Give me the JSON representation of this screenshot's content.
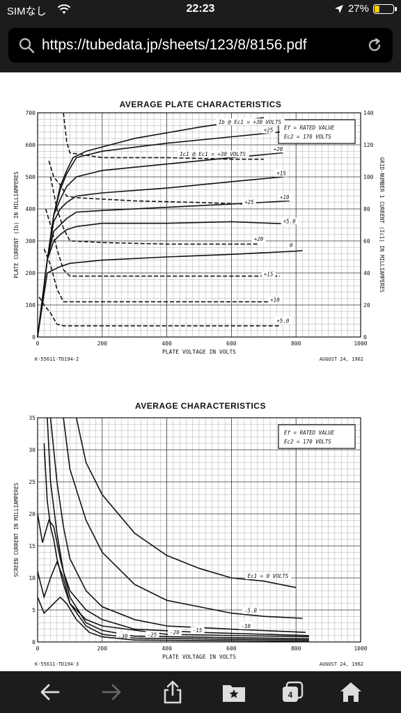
{
  "status_bar": {
    "carrier": "SIMなし",
    "time": "22:23",
    "battery": "27%",
    "battery_fraction": 0.27
  },
  "browser": {
    "url": "https://tubedata.jp/sheets/123/8/8156.pdf",
    "tab_count": "4"
  },
  "chart_data": [
    {
      "type": "line",
      "title": "AVERAGE PLATE CHARACTERISTICS",
      "xlabel": "PLATE VOLTAGE IN VOLTS",
      "ylabel": "PLATE CURRENT (Ib) IN MILLIAMPERES",
      "y2label": "GRID-NUMBER 1 CURRENT (Ic1) IN MILLIAMPERES",
      "xlim": [
        0,
        1000
      ],
      "ylim": [
        0,
        700
      ],
      "y2lim": [
        0,
        140
      ],
      "x_ticks": [
        "0",
        "200",
        "400",
        "600",
        "800",
        "1000"
      ],
      "y_ticks": [
        "0",
        "100",
        "200",
        "300",
        "400",
        "500",
        "600",
        "700"
      ],
      "y2_ticks": [
        "0",
        "20",
        "40",
        "60",
        "80",
        "100",
        "120",
        "140"
      ],
      "grid": true,
      "legend": [
        "Ef = RATED VALUE",
        "Ec2 = 170 VOLTS"
      ],
      "legend_position": "top-right",
      "footer_left": "K-55611-TD194-2",
      "footer_right": "AUGUST 24, 1962",
      "series": [
        {
          "name": "Ib @ Ec1 = +30 VOLTS",
          "style": "solid",
          "label_x": 560,
          "label_y": 665,
          "points": [
            [
              0,
              0
            ],
            [
              30,
              240
            ],
            [
              50,
              380
            ],
            [
              70,
              470
            ],
            [
              90,
              520
            ],
            [
              110,
              560
            ],
            [
              150,
              580
            ],
            [
              300,
              620
            ],
            [
              500,
              655
            ],
            [
              700,
              685
            ]
          ]
        },
        {
          "name": "+25",
          "style": "solid",
          "label_x": 700,
          "label_y": 640,
          "points": [
            [
              0,
              0
            ],
            [
              30,
              240
            ],
            [
              50,
              380
            ],
            [
              70,
              460
            ],
            [
              90,
              510
            ],
            [
              120,
              560
            ],
            [
              200,
              580
            ],
            [
              400,
              605
            ],
            [
              600,
              625
            ],
            [
              750,
              640
            ]
          ]
        },
        {
          "name": "+20",
          "style": "solid",
          "label_x": 730,
          "label_y": 580,
          "points": [
            [
              0,
              0
            ],
            [
              30,
              240
            ],
            [
              50,
              380
            ],
            [
              70,
              430
            ],
            [
              90,
              470
            ],
            [
              120,
              500
            ],
            [
              200,
              520
            ],
            [
              400,
              540
            ],
            [
              600,
              560
            ],
            [
              760,
              575
            ]
          ]
        },
        {
          "name": "+15",
          "style": "solid",
          "label_x": 740,
          "label_y": 505,
          "points": [
            [
              0,
              0
            ],
            [
              30,
              240
            ],
            [
              50,
              360
            ],
            [
              70,
              400
            ],
            [
              90,
              420
            ],
            [
              120,
              440
            ],
            [
              200,
              450
            ],
            [
              400,
              465
            ],
            [
              600,
              485
            ],
            [
              760,
              500
            ]
          ]
        },
        {
          "name": "+10",
          "style": "solid",
          "label_x": 750,
          "label_y": 430,
          "points": [
            [
              0,
              0
            ],
            [
              30,
              240
            ],
            [
              50,
              330
            ],
            [
              70,
              350
            ],
            [
              90,
              370
            ],
            [
              120,
              390
            ],
            [
              200,
              395
            ],
            [
              400,
              405
            ],
            [
              600,
              415
            ],
            [
              780,
              425
            ]
          ]
        },
        {
          "name": "+5.0",
          "style": "solid",
          "label_x": 760,
          "label_y": 355,
          "points": [
            [
              0,
              0
            ],
            [
              30,
              240
            ],
            [
              50,
              300
            ],
            [
              70,
              320
            ],
            [
              90,
              335
            ],
            [
              120,
              345
            ],
            [
              200,
              355
            ],
            [
              400,
              355
            ],
            [
              600,
              360
            ],
            [
              800,
              352
            ]
          ]
        },
        {
          "name": "0",
          "style": "solid",
          "label_x": 780,
          "label_y": 280,
          "points": [
            [
              0,
              0
            ],
            [
              30,
              200
            ],
            [
              50,
              210
            ],
            [
              70,
              220
            ],
            [
              100,
              230
            ],
            [
              200,
              240
            ],
            [
              400,
              250
            ],
            [
              600,
              258
            ],
            [
              800,
              268
            ],
            [
              820,
              270
            ]
          ]
        },
        {
          "name": "Ic1 @ Ec1 = +30 VOLTS",
          "style": "dashed",
          "axis": "y2",
          "label_x": 440,
          "label_y": 113,
          "points": [
            [
              80,
              140
            ],
            [
              90,
              122
            ],
            [
              100,
              115
            ],
            [
              200,
              112
            ],
            [
              400,
              112
            ],
            [
              600,
              111
            ],
            [
              700,
              111
            ]
          ]
        },
        {
          "name": "+25",
          "style": "dashed",
          "axis": "y2",
          "label_x": 640,
          "label_y": 83,
          "points": [
            [
              35,
              110
            ],
            [
              50,
              100
            ],
            [
              70,
              95
            ],
            [
              90,
              88
            ],
            [
              120,
              87
            ],
            [
              300,
              85
            ],
            [
              500,
              84
            ],
            [
              640,
              83
            ]
          ]
        },
        {
          "name": "+20",
          "style": "dashed",
          "axis": "y2",
          "label_x": 670,
          "label_y": 60,
          "points": [
            [
              40,
              100
            ],
            [
              60,
              80
            ],
            [
              80,
              68
            ],
            [
              100,
              60
            ],
            [
              200,
              59
            ],
            [
              400,
              58
            ],
            [
              600,
              58
            ],
            [
              680,
              58
            ]
          ]
        },
        {
          "name": "+15",
          "style": "dashed",
          "axis": "y2",
          "label_x": 700,
          "label_y": 38,
          "points": [
            [
              25,
              80
            ],
            [
              40,
              70
            ],
            [
              60,
              55
            ],
            [
              80,
              42
            ],
            [
              100,
              38
            ],
            [
              200,
              38
            ],
            [
              500,
              38
            ],
            [
              750,
              38
            ]
          ]
        },
        {
          "name": "+10",
          "style": "dashed",
          "axis": "y2",
          "label_x": 720,
          "label_y": 22,
          "points": [
            [
              20,
              55
            ],
            [
              40,
              45
            ],
            [
              60,
              30
            ],
            [
              80,
              22
            ],
            [
              100,
              22
            ],
            [
              300,
              22
            ],
            [
              600,
              22
            ],
            [
              750,
              22
            ]
          ]
        },
        {
          "name": "+5.0",
          "style": "dashed",
          "axis": "y2",
          "label_x": 740,
          "label_y": 9,
          "points": [
            [
              5,
              25
            ],
            [
              20,
              20
            ],
            [
              40,
              15
            ],
            [
              60,
              8
            ],
            [
              80,
              7
            ],
            [
              200,
              7
            ],
            [
              500,
              7
            ],
            [
              750,
              7
            ]
          ]
        }
      ]
    },
    {
      "type": "line",
      "title": "AVERAGE CHARACTERISTICS",
      "xlabel": "PLATE VOLTAGE IN VOLTS",
      "ylabel": "SCREEN CURRENT IN MILLIAMPERES",
      "xlim": [
        0,
        1000
      ],
      "ylim": [
        0,
        35
      ],
      "x_ticks": [
        "0",
        "200",
        "400",
        "600",
        "800",
        "1000"
      ],
      "y_ticks": [
        "0",
        "5",
        "10",
        "15",
        "20",
        "25",
        "30",
        "35"
      ],
      "grid": true,
      "legend": [
        "Ef = RATED VALUE",
        "Ec2 = 170 VOLTS"
      ],
      "legend_position": "top-right",
      "footer_left": "K-55611-TD194-3",
      "footer_right": "AUGUST 24, 1962",
      "series": [
        {
          "name": "Ec1 = 0 VOLTS",
          "style": "solid",
          "label_x": 650,
          "label_y": 10,
          "points": [
            [
              120,
              35
            ],
            [
              150,
              28
            ],
            [
              200,
              23
            ],
            [
              300,
              17
            ],
            [
              400,
              13.5
            ],
            [
              500,
              11.5
            ],
            [
              600,
              10
            ],
            [
              700,
              9.5
            ],
            [
              800,
              8.5
            ]
          ]
        },
        {
          "name": "-5.0",
          "style": "solid",
          "label_x": 640,
          "label_y": 4.6,
          "points": [
            [
              80,
              35
            ],
            [
              100,
              27
            ],
            [
              150,
              19
            ],
            [
              200,
              14
            ],
            [
              300,
              9
            ],
            [
              400,
              6.5
            ],
            [
              500,
              5.5
            ],
            [
              600,
              4.5
            ],
            [
              700,
              4
            ],
            [
              820,
              3.7
            ]
          ]
        },
        {
          "name": "-10",
          "style": "solid",
          "label_x": 630,
          "label_y": 2.2,
          "points": [
            [
              40,
              35
            ],
            [
              60,
              25
            ],
            [
              80,
              18
            ],
            [
              100,
              13
            ],
            [
              150,
              8
            ],
            [
              200,
              5.5
            ],
            [
              300,
              3.5
            ],
            [
              400,
              2.5
            ],
            [
              600,
              2
            ],
            [
              830,
              1.5
            ]
          ]
        },
        {
          "name": "-15",
          "style": "solid",
          "label_x": 480,
          "label_y": 1.5,
          "points": [
            [
              30,
              35
            ],
            [
              40,
              25
            ],
            [
              60,
              17
            ],
            [
              80,
              11
            ],
            [
              100,
              8
            ],
            [
              150,
              5
            ],
            [
              200,
              3.5
            ],
            [
              300,
              2
            ],
            [
              500,
              1.5
            ],
            [
              840,
              1
            ]
          ]
        },
        {
          "name": "-20",
          "style": "solid",
          "label_x": 410,
          "label_y": 1.2,
          "points": [
            [
              20,
              31
            ],
            [
              30,
              22
            ],
            [
              40,
              18
            ],
            [
              50,
              16
            ],
            [
              60,
              13
            ],
            [
              80,
              9
            ],
            [
              100,
              6
            ],
            [
              150,
              3.5
            ],
            [
              200,
              2.5
            ],
            [
              400,
              1.2
            ],
            [
              840,
              0.8
            ]
          ]
        },
        {
          "name": "-25",
          "style": "solid",
          "label_x": 340,
          "label_y": 0.8,
          "points": [
            [
              0,
              20
            ],
            [
              15,
              15.5
            ],
            [
              35,
              19
            ],
            [
              50,
              18
            ],
            [
              70,
              13
            ],
            [
              100,
              7
            ],
            [
              150,
              3
            ],
            [
              200,
              1.8
            ],
            [
              300,
              0.9
            ],
            [
              840,
              0.5
            ]
          ]
        },
        {
          "name": "-30",
          "style": "solid",
          "label_x": 250,
          "label_y": 0.6,
          "points": [
            [
              0,
              11
            ],
            [
              20,
              7
            ],
            [
              40,
              10
            ],
            [
              60,
              12.5
            ],
            [
              80,
              10
            ],
            [
              100,
              6
            ],
            [
              150,
              2.5
            ],
            [
              200,
              1.2
            ],
            [
              300,
              0.6
            ],
            [
              840,
              0.3
            ]
          ]
        },
        {
          "name": "",
          "style": "solid",
          "points": [
            [
              0,
              7
            ],
            [
              20,
              4.5
            ],
            [
              50,
              6
            ],
            [
              70,
              7
            ],
            [
              90,
              6
            ],
            [
              120,
              3.5
            ],
            [
              160,
              1.5
            ],
            [
              200,
              0.8
            ],
            [
              300,
              0.3
            ],
            [
              840,
              0.1
            ]
          ]
        }
      ]
    }
  ]
}
